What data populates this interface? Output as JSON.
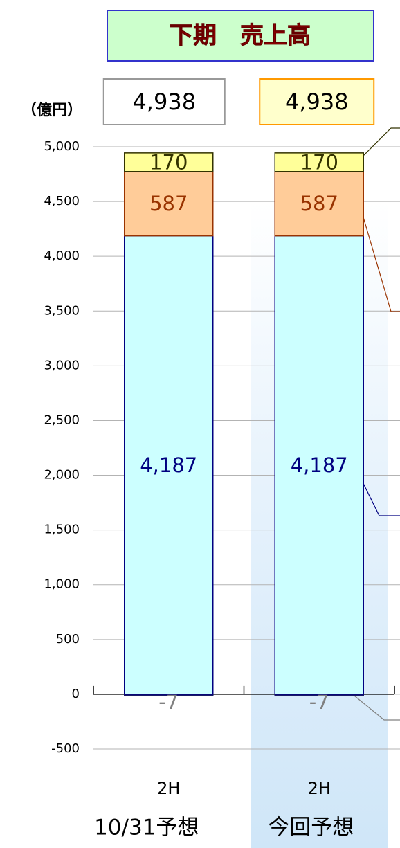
{
  "chart_data": {
    "type": "stacked_bar",
    "title": "下期　売上高",
    "y_unit": "（億円）",
    "categories": [
      "2H",
      "2H"
    ],
    "groups": [
      "10/31予想",
      "今回予想"
    ],
    "series": [
      {
        "color": "#1a1a66",
        "label_color": "#808080",
        "values": [
          -7,
          -7
        ]
      },
      {
        "color": "#ccffff",
        "border": "#000080",
        "label_color": "#000080",
        "values": [
          4187,
          4187
        ],
        "value_labels": [
          "4,187",
          "4,187"
        ]
      },
      {
        "color": "#ffcc99",
        "border": "#993300",
        "label_color": "#993300",
        "values": [
          587,
          587
        ]
      },
      {
        "color": "#ffff99",
        "border": "#333300",
        "label_color": "#333300",
        "values": [
          170,
          170
        ]
      }
    ],
    "totals": {
      "values": [
        4938,
        4938
      ],
      "value_labels": [
        "4,938",
        "4,938"
      ],
      "colors": [
        "#ffffff",
        "#ffffcc"
      ],
      "borders": [
        "#999999",
        "#ff9900"
      ]
    },
    "ylim": [
      -500,
      5000
    ],
    "yticks": [
      -500,
      0,
      500,
      {
        "value": 1000,
        "label": "1,000"
      },
      {
        "value": 1500,
        "label": "1,500"
      },
      {
        "value": 2000,
        "label": "2,000"
      },
      {
        "value": 2500,
        "label": "2,500"
      },
      {
        "value": 3000,
        "label": "3,000"
      },
      {
        "value": 3500,
        "label": "3,500"
      },
      {
        "value": 4000,
        "label": "4,000"
      },
      {
        "value": 4500,
        "label": "4,500"
      },
      {
        "value": 5000,
        "label": "5,000"
      }
    ],
    "grid": true,
    "highlight": 1
  }
}
